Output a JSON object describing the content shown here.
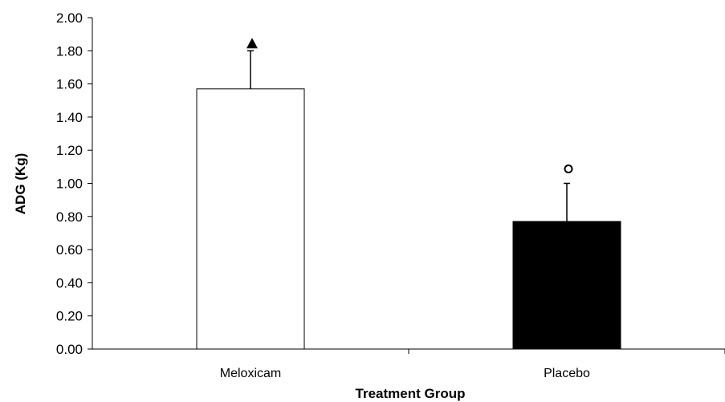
{
  "chart_data": {
    "type": "bar",
    "title": "",
    "xlabel": "Treatment Group",
    "ylabel": "ADG  (Kg)",
    "categories": [
      "Meloxicam",
      "Placebo"
    ],
    "values": [
      1.57,
      0.77
    ],
    "error_upper": [
      1.8,
      1.0
    ],
    "ylim": [
      0,
      2.0
    ],
    "y_ticks": [
      "0.00",
      "0.20",
      "0.40",
      "0.60",
      "0.80",
      "1.00",
      "1.20",
      "1.40",
      "1.60",
      "1.80",
      "2.00"
    ],
    "grid": false,
    "bar_colors": [
      "#ffffff",
      "#000000"
    ],
    "markers": [
      "filled-triangle",
      "open-circle"
    ]
  }
}
